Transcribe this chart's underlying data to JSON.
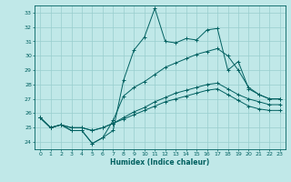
{
  "xlabel": "Humidex (Indice chaleur)",
  "background_color": "#c0e8e8",
  "line_color": "#006060",
  "grid_color": "#98cece",
  "xlim": [
    -0.5,
    23.5
  ],
  "ylim": [
    23.5,
    33.5
  ],
  "xticks": [
    0,
    1,
    2,
    3,
    4,
    5,
    6,
    7,
    8,
    9,
    10,
    11,
    12,
    13,
    14,
    15,
    16,
    17,
    18,
    19,
    20,
    21,
    22,
    23
  ],
  "yticks": [
    24,
    25,
    26,
    27,
    28,
    29,
    30,
    31,
    32,
    33
  ],
  "series": [
    [
      25.7,
      25.0,
      25.2,
      24.8,
      24.8,
      23.9,
      24.3,
      24.8,
      28.3,
      30.4,
      31.3,
      33.3,
      31.0,
      30.9,
      31.2,
      31.1,
      31.8,
      31.9,
      29.0,
      29.6,
      27.7,
      27.3,
      27.0,
      27.0
    ],
    [
      25.7,
      25.0,
      25.2,
      24.8,
      24.8,
      23.9,
      24.3,
      25.5,
      27.2,
      27.8,
      28.2,
      28.7,
      29.2,
      29.5,
      29.8,
      30.1,
      30.3,
      30.5,
      30.0,
      29.0,
      27.8,
      27.3,
      27.0,
      27.0
    ],
    [
      25.7,
      25.0,
      25.2,
      25.0,
      25.0,
      24.8,
      25.0,
      25.3,
      25.7,
      26.1,
      26.4,
      26.8,
      27.1,
      27.4,
      27.6,
      27.8,
      28.0,
      28.1,
      27.7,
      27.3,
      27.0,
      26.8,
      26.6,
      26.6
    ],
    [
      25.7,
      25.0,
      25.2,
      25.0,
      25.0,
      24.8,
      25.0,
      25.3,
      25.6,
      25.9,
      26.2,
      26.5,
      26.8,
      27.0,
      27.2,
      27.4,
      27.6,
      27.7,
      27.3,
      26.9,
      26.5,
      26.3,
      26.2,
      26.2
    ]
  ]
}
